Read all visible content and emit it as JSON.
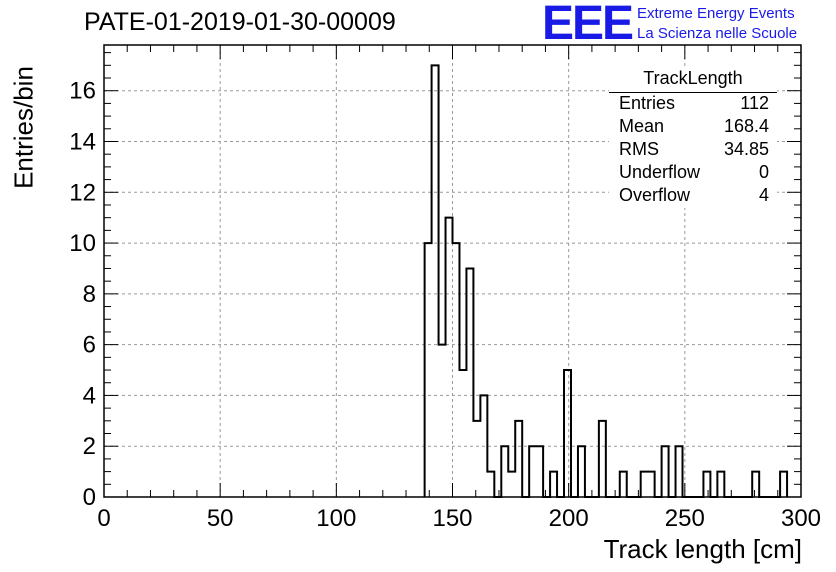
{
  "title": "PATE-01-2019-01-30-00009",
  "logo": {
    "text": "EEE",
    "line1": "Extreme Energy Events",
    "line2": "La Scienza nelle Scuole",
    "color": "#1a1ae6"
  },
  "stats": {
    "name": "TrackLength",
    "rows": [
      {
        "key": "Entries",
        "value": "112"
      },
      {
        "key": "Mean",
        "value": "168.4"
      },
      {
        "key": "RMS",
        "value": "34.85"
      },
      {
        "key": "Underflow",
        "value": "0"
      },
      {
        "key": "Overflow",
        "value": "4"
      }
    ]
  },
  "chart_data": {
    "type": "bar",
    "histogram": true,
    "title": "PATE-01-2019-01-30-00009",
    "xlabel": "Track length [cm]",
    "ylabel": "Entries/bin",
    "xlim": [
      0,
      300
    ],
    "ylim": [
      0,
      17.8
    ],
    "bin_width": 3,
    "x_ticks": [
      0,
      50,
      100,
      150,
      200,
      250,
      300
    ],
    "y_ticks": [
      0,
      2,
      4,
      6,
      8,
      10,
      12,
      14,
      16
    ],
    "grid": true,
    "bins": [
      {
        "x": 138,
        "y": 10
      },
      {
        "x": 141,
        "y": 17
      },
      {
        "x": 144,
        "y": 6
      },
      {
        "x": 147,
        "y": 11
      },
      {
        "x": 150,
        "y": 10
      },
      {
        "x": 153,
        "y": 5
      },
      {
        "x": 156,
        "y": 9
      },
      {
        "x": 159,
        "y": 3
      },
      {
        "x": 162,
        "y": 4
      },
      {
        "x": 165,
        "y": 1
      },
      {
        "x": 168,
        "y": 0
      },
      {
        "x": 171,
        "y": 2
      },
      {
        "x": 174,
        "y": 1
      },
      {
        "x": 177,
        "y": 3
      },
      {
        "x": 180,
        "y": 0
      },
      {
        "x": 183,
        "y": 2
      },
      {
        "x": 186,
        "y": 2
      },
      {
        "x": 189,
        "y": 0
      },
      {
        "x": 192,
        "y": 1
      },
      {
        "x": 195,
        "y": 0
      },
      {
        "x": 198,
        "y": 5
      },
      {
        "x": 201,
        "y": 0
      },
      {
        "x": 204,
        "y": 2
      },
      {
        "x": 207,
        "y": 0
      },
      {
        "x": 210,
        "y": 0
      },
      {
        "x": 213,
        "y": 3
      },
      {
        "x": 216,
        "y": 0
      },
      {
        "x": 219,
        "y": 0
      },
      {
        "x": 222,
        "y": 1
      },
      {
        "x": 225,
        "y": 0
      },
      {
        "x": 228,
        "y": 0
      },
      {
        "x": 231,
        "y": 1
      },
      {
        "x": 234,
        "y": 1
      },
      {
        "x": 237,
        "y": 0
      },
      {
        "x": 240,
        "y": 2
      },
      {
        "x": 243,
        "y": 0
      },
      {
        "x": 246,
        "y": 2
      },
      {
        "x": 249,
        "y": 0
      },
      {
        "x": 252,
        "y": 0
      },
      {
        "x": 255,
        "y": 0
      },
      {
        "x": 258,
        "y": 1
      },
      {
        "x": 261,
        "y": 0
      },
      {
        "x": 264,
        "y": 1
      },
      {
        "x": 267,
        "y": 0
      },
      {
        "x": 270,
        "y": 0
      },
      {
        "x": 273,
        "y": 0
      },
      {
        "x": 276,
        "y": 0
      },
      {
        "x": 279,
        "y": 1
      },
      {
        "x": 282,
        "y": 0
      },
      {
        "x": 285,
        "y": 0
      },
      {
        "x": 288,
        "y": 0
      },
      {
        "x": 291,
        "y": 1
      }
    ]
  }
}
